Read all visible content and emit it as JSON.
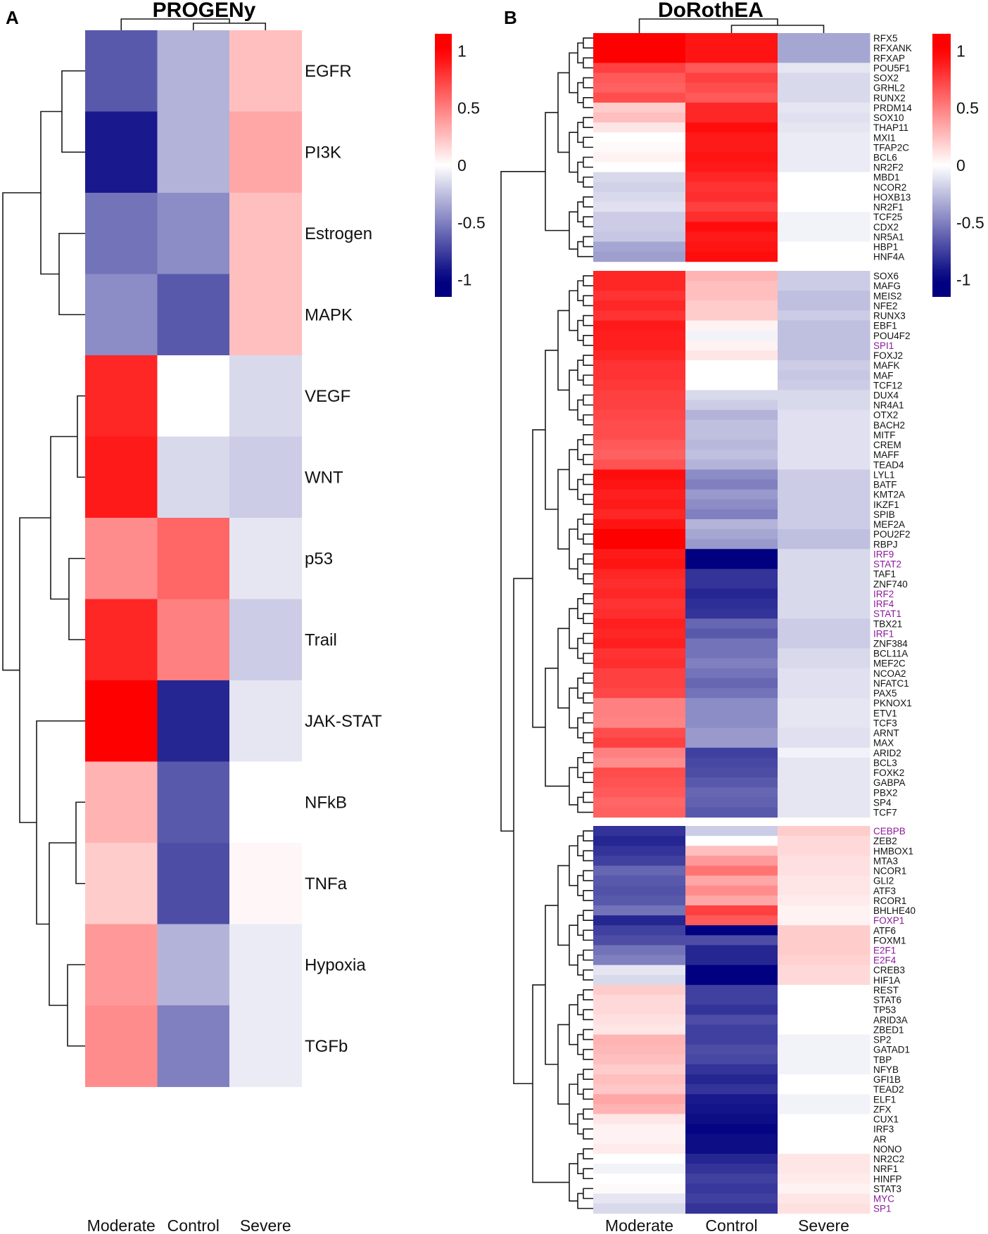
{
  "panels": {
    "a": {
      "letter": "A",
      "title": "PROGENy"
    },
    "b": {
      "letter": "B",
      "title": "DoRothEA"
    }
  },
  "colorscale": {
    "low": "#000080",
    "mid": "#ffffff",
    "high": "#ff0000"
  },
  "highlight_color": "#8b1a9a",
  "chart_data": [
    {
      "type": "heatmap",
      "title": "PROGENy",
      "columns": [
        "Moderate",
        "Control",
        "Severe"
      ],
      "rows": [
        "EGFR",
        "PI3K",
        "Estrogen",
        "MAPK",
        "VEGF",
        "WNT",
        "p53",
        "Trail",
        "JAK-STAT",
        "NFkB",
        "TNFa",
        "Hypoxia",
        "TGFb"
      ],
      "values": [
        [
          -0.65,
          -0.3,
          0.25
        ],
        [
          -0.9,
          -0.3,
          0.35
        ],
        [
          -0.55,
          -0.45,
          0.25
        ],
        [
          -0.45,
          -0.65,
          0.25
        ],
        [
          0.85,
          0.0,
          -0.15
        ],
        [
          0.9,
          -0.15,
          -0.2
        ],
        [
          0.45,
          0.6,
          -0.1
        ],
        [
          0.85,
          0.5,
          -0.2
        ],
        [
          1.0,
          -0.85,
          -0.1
        ],
        [
          0.3,
          -0.65,
          0.0
        ],
        [
          0.2,
          -0.7,
          0.03
        ],
        [
          0.4,
          -0.3,
          -0.08
        ],
        [
          0.45,
          -0.5,
          -0.08
        ]
      ],
      "colorbar": {
        "ticks": [
          1,
          0.5,
          0,
          -0.5,
          -1
        ],
        "range": [
          -1.15,
          1.15
        ]
      }
    },
    {
      "type": "heatmap",
      "title": "DoRothEA",
      "columns": [
        "Moderate",
        "Control",
        "Severe"
      ],
      "groups": [
        {
          "rows": [
            "RFX5",
            "RFXANK",
            "RFXAP",
            "POU5F1",
            "SOX2",
            "GRHL2",
            "RUNX2",
            "PRDM14",
            "SOX10",
            "THAP11",
            "MXI1",
            "TFAP2C",
            "BCL6",
            "NR2F2",
            "MBD1",
            "NCOR2",
            "HOXB13",
            "NR2F1",
            "TCF25",
            "CDX2",
            "NR5A1",
            "HBP1",
            "HNF4A"
          ],
          "values": [
            [
              1.0,
              0.92,
              -0.35
            ],
            [
              1.0,
              0.92,
              -0.35
            ],
            [
              1.0,
              0.92,
              -0.35
            ],
            [
              0.75,
              0.65,
              -0.1
            ],
            [
              0.65,
              0.75,
              -0.15
            ],
            [
              0.62,
              0.7,
              -0.15
            ],
            [
              0.7,
              0.65,
              -0.15
            ],
            [
              0.2,
              0.85,
              -0.1
            ],
            [
              0.25,
              0.85,
              -0.12
            ],
            [
              0.1,
              0.95,
              -0.1
            ],
            [
              0.0,
              0.9,
              -0.08
            ],
            [
              0.02,
              0.9,
              -0.08
            ],
            [
              0.05,
              0.92,
              -0.08
            ],
            [
              0.0,
              0.9,
              -0.08
            ],
            [
              -0.15,
              0.85,
              0.0
            ],
            [
              -0.18,
              0.8,
              0.0
            ],
            [
              -0.15,
              0.82,
              0.0
            ],
            [
              -0.12,
              0.75,
              0.0
            ],
            [
              -0.2,
              0.82,
              -0.05
            ],
            [
              -0.2,
              0.95,
              -0.05
            ],
            [
              -0.22,
              0.9,
              -0.05
            ],
            [
              -0.35,
              0.92,
              0.0
            ],
            [
              -0.38,
              0.95,
              0.0
            ]
          ]
        },
        {
          "rows": [
            "SOX6",
            "MAFG",
            "MEIS2",
            "NFE2",
            "RUNX3",
            "EBF1",
            "POU4F2",
            "SPI1",
            "FOXJ2",
            "MAFK",
            "MAF",
            "TCF12",
            "DUX4",
            "NR4A1",
            "OTX2",
            "BACH2",
            "MITF",
            "CREM",
            "MAFF",
            "TEAD4",
            "LYL1",
            "BATF",
            "KMT2A",
            "IKZF1",
            "SPIB",
            "MEF2A",
            "POU2F2",
            "RBPJ",
            "IRF9",
            "STAT2",
            "TAF1",
            "ZNF740",
            "IRF2",
            "IRF4",
            "STAT1",
            "TBX21",
            "IRF1",
            "ZNF384",
            "BCL11A",
            "MEF2C",
            "NCOA2",
            "NFATC1",
            "PAX5",
            "PKNOX1",
            "ETV1",
            "TCF3",
            "ARNT",
            "MAX",
            "ARID2",
            "BCL3",
            "FOXK2",
            "GABPA",
            "PBX2",
            "SP4",
            "TCF7"
          ],
          "values": [
            [
              0.85,
              0.3,
              -0.2
            ],
            [
              0.85,
              0.25,
              -0.2
            ],
            [
              0.8,
              0.25,
              -0.25
            ],
            [
              0.85,
              0.2,
              -0.25
            ],
            [
              0.8,
              0.2,
              -0.2
            ],
            [
              0.9,
              0.05,
              -0.25
            ],
            [
              0.88,
              -0.05,
              -0.25
            ],
            [
              0.88,
              0.05,
              -0.25
            ],
            [
              0.85,
              0.1,
              -0.25
            ],
            [
              0.8,
              0.0,
              -0.2
            ],
            [
              0.8,
              0.0,
              -0.22
            ],
            [
              0.78,
              0.0,
              -0.2
            ],
            [
              0.75,
              -0.15,
              -0.15
            ],
            [
              0.75,
              -0.2,
              -0.15
            ],
            [
              0.72,
              -0.3,
              -0.12
            ],
            [
              0.7,
              -0.25,
              -0.12
            ],
            [
              0.7,
              -0.25,
              -0.12
            ],
            [
              0.65,
              -0.28,
              -0.12
            ],
            [
              0.62,
              -0.25,
              -0.12
            ],
            [
              0.68,
              -0.3,
              -0.12
            ],
            [
              0.95,
              -0.45,
              -0.2
            ],
            [
              0.92,
              -0.5,
              -0.2
            ],
            [
              0.88,
              -0.4,
              -0.2
            ],
            [
              0.9,
              -0.45,
              -0.2
            ],
            [
              0.85,
              -0.5,
              -0.2
            ],
            [
              0.92,
              -0.3,
              -0.2
            ],
            [
              1.0,
              -0.35,
              -0.25
            ],
            [
              1.0,
              -0.4,
              -0.25
            ],
            [
              0.9,
              -1.0,
              -0.15
            ],
            [
              0.92,
              -1.0,
              -0.15
            ],
            [
              0.85,
              -0.8,
              -0.15
            ],
            [
              0.82,
              -0.8,
              -0.15
            ],
            [
              0.85,
              -0.85,
              -0.15
            ],
            [
              0.8,
              -0.82,
              -0.15
            ],
            [
              0.82,
              -0.8,
              -0.15
            ],
            [
              0.88,
              -0.6,
              -0.2
            ],
            [
              0.85,
              -0.65,
              -0.2
            ],
            [
              0.88,
              -0.55,
              -0.2
            ],
            [
              0.8,
              -0.55,
              -0.15
            ],
            [
              0.82,
              -0.5,
              -0.15
            ],
            [
              0.75,
              -0.55,
              -0.12
            ],
            [
              0.75,
              -0.6,
              -0.12
            ],
            [
              0.72,
              -0.55,
              -0.12
            ],
            [
              0.5,
              -0.45,
              -0.1
            ],
            [
              0.5,
              -0.45,
              -0.1
            ],
            [
              0.48,
              -0.45,
              -0.1
            ],
            [
              0.7,
              -0.4,
              -0.12
            ],
            [
              0.75,
              -0.4,
              -0.12
            ],
            [
              0.5,
              -0.75,
              -0.05
            ],
            [
              0.45,
              -0.72,
              -0.1
            ],
            [
              0.7,
              -0.7,
              -0.1
            ],
            [
              0.68,
              -0.65,
              -0.1
            ],
            [
              0.65,
              -0.6,
              -0.1
            ],
            [
              0.6,
              -0.62,
              -0.1
            ],
            [
              0.62,
              -0.65,
              -0.1
            ]
          ]
        },
        {
          "rows": [
            "CEBPB",
            "ZEB2",
            "HMBOX1",
            "MTA3",
            "NCOR1",
            "GLI2",
            "ATF3",
            "RCOR1",
            "BHLHE40",
            "FOXP1",
            "ATF6",
            "FOXM1",
            "E2F1",
            "E2F4",
            "CREB3",
            "HIF1A",
            "REST",
            "STAT6",
            "TP53",
            "ARID3A",
            "ZBED1",
            "SP2",
            "GATAD1",
            "TBP",
            "NFYB",
            "GFI1B",
            "TEAD2",
            "ELF1",
            "ZFX",
            "CUX1",
            "IRF3",
            "AR",
            "NONO",
            "NR2C2",
            "NRF1",
            "HINFP",
            "STAT3",
            "MYC",
            "SP1"
          ],
          "values": [
            [
              -0.8,
              -0.2,
              0.2
            ],
            [
              -0.85,
              0.0,
              0.15
            ],
            [
              -0.8,
              0.25,
              0.15
            ],
            [
              -0.75,
              0.4,
              0.12
            ],
            [
              -0.6,
              0.55,
              0.12
            ],
            [
              -0.65,
              0.35,
              0.1
            ],
            [
              -0.68,
              0.45,
              0.1
            ],
            [
              -0.65,
              0.35,
              0.08
            ],
            [
              -0.55,
              0.75,
              0.05
            ],
            [
              -0.85,
              0.65,
              0.05
            ],
            [
              -0.75,
              -1.0,
              0.2
            ],
            [
              -0.7,
              -0.7,
              0.2
            ],
            [
              -0.55,
              -0.85,
              0.2
            ],
            [
              -0.5,
              -0.85,
              0.18
            ],
            [
              -0.1,
              -1.0,
              0.15
            ],
            [
              -0.15,
              -1.0,
              0.15
            ],
            [
              0.2,
              -0.75,
              0.0
            ],
            [
              0.15,
              -0.75,
              0.0
            ],
            [
              0.15,
              -0.8,
              0.0
            ],
            [
              0.12,
              -0.7,
              0.0
            ],
            [
              0.1,
              -0.75,
              0.0
            ],
            [
              0.3,
              -0.75,
              -0.05
            ],
            [
              0.28,
              -0.7,
              -0.05
            ],
            [
              0.25,
              -0.72,
              -0.05
            ],
            [
              0.2,
              -0.8,
              -0.05
            ],
            [
              0.25,
              -0.85,
              0.0
            ],
            [
              0.22,
              -0.8,
              0.0
            ],
            [
              0.35,
              -0.9,
              -0.05
            ],
            [
              0.3,
              -0.92,
              -0.05
            ],
            [
              0.1,
              -0.95,
              0.0
            ],
            [
              0.05,
              -0.98,
              0.0
            ],
            [
              0.05,
              -0.95,
              0.0
            ],
            [
              0.08,
              -0.95,
              0.0
            ],
            [
              0.0,
              -0.85,
              0.1
            ],
            [
              -0.05,
              -0.8,
              0.1
            ],
            [
              0.0,
              -0.75,
              0.08
            ],
            [
              0.02,
              -0.78,
              0.05
            ],
            [
              -0.1,
              -0.75,
              0.1
            ],
            [
              -0.15,
              -0.8,
              0.12
            ]
          ]
        }
      ],
      "highlighted_rows": [
        "SPI1",
        "IRF9",
        "STAT2",
        "IRF2",
        "IRF4",
        "STAT1",
        "IRF1",
        "CEBPB",
        "FOXP1",
        "E2F1",
        "E2F4",
        "MYC",
        "SP1"
      ],
      "colorbar": {
        "ticks": [
          1,
          0.5,
          0,
          -0.5,
          -1
        ],
        "range": [
          -1.15,
          1.15
        ]
      }
    }
  ]
}
